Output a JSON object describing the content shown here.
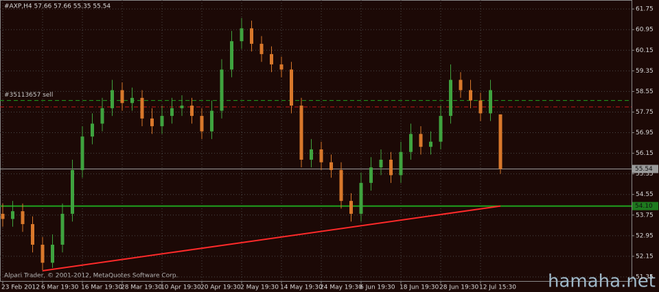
{
  "chart_data": {
    "type": "candlestick",
    "title": "#AXP,H4  57.66 57.66 55.35 55.54",
    "copyright": "Alpari Trader, © 2001-2012, MetaQuotes Software Corp.",
    "watermark": "hamaha.net",
    "categories": [
      "23 Feb 2012",
      null,
      null,
      null,
      "6 Mar 19:30",
      null,
      null,
      null,
      "16 Mar 19:30",
      null,
      null,
      null,
      "28 Mar 19:30",
      null,
      null,
      null,
      "10 Apr 19:30",
      null,
      null,
      null,
      "20 Apr 19:30",
      null,
      null,
      null,
      "2 May 19:30",
      null,
      null,
      null,
      "14 May 19:30",
      null,
      null,
      null,
      "24 May 19:30",
      null,
      null,
      null,
      "6 Jun 19:30",
      null,
      null,
      null,
      "18 Jun 19:30",
      null,
      null,
      null,
      "28 Jun 19:30",
      null,
      null,
      null,
      "12 Jul 15:30",
      null,
      null
    ],
    "open": [
      53.8,
      53.6,
      53.9,
      53.4,
      52.6,
      51.9,
      52.6,
      53.8,
      55.5,
      56.8,
      57.3,
      57.9,
      58.6,
      58.1,
      58.3,
      57.5,
      57.2,
      57.6,
      57.9,
      58.0,
      57.6,
      57.0,
      57.8,
      59.4,
      60.5,
      61.0,
      60.4,
      60.0,
      59.6,
      59.4,
      58.0,
      55.9,
      56.3,
      55.8,
      55.5,
      54.3,
      53.8,
      55.0,
      55.6,
      55.9,
      55.3,
      56.2,
      56.9,
      56.4,
      56.6,
      57.6,
      59.0,
      58.6,
      58.2,
      57.7,
      57.66
    ],
    "high": [
      54.2,
      54.3,
      54.2,
      53.7,
      52.9,
      53.0,
      54.2,
      55.9,
      57.2,
      57.7,
      58.3,
      59.0,
      58.9,
      58.7,
      58.6,
      57.9,
      58.0,
      58.3,
      58.4,
      58.3,
      57.9,
      58.2,
      59.8,
      60.9,
      61.4,
      61.3,
      60.7,
      60.3,
      59.9,
      59.7,
      58.3,
      56.7,
      56.6,
      56.1,
      55.8,
      54.6,
      55.4,
      56.0,
      56.3,
      56.2,
      56.6,
      57.3,
      57.2,
      57.0,
      58.0,
      59.6,
      59.3,
      59.0,
      58.5,
      59.0,
      57.66
    ],
    "low": [
      53.3,
      53.3,
      53.1,
      52.3,
      51.6,
      51.7,
      52.3,
      53.5,
      55.2,
      56.5,
      57.0,
      57.6,
      57.8,
      57.8,
      57.2,
      56.9,
      56.9,
      57.3,
      57.6,
      57.3,
      56.7,
      56.7,
      57.5,
      59.1,
      60.2,
      60.1,
      59.7,
      59.3,
      59.1,
      57.7,
      55.6,
      55.6,
      55.5,
      55.2,
      54.0,
      53.5,
      53.5,
      54.7,
      55.3,
      55.0,
      55.0,
      55.9,
      56.1,
      56.1,
      56.3,
      57.3,
      58.3,
      57.9,
      57.4,
      57.4,
      55.35
    ],
    "close": [
      53.6,
      53.9,
      53.4,
      52.6,
      51.9,
      52.6,
      53.8,
      55.5,
      56.8,
      57.3,
      57.9,
      58.6,
      58.1,
      58.3,
      57.5,
      57.2,
      57.6,
      57.9,
      58.0,
      57.6,
      57.0,
      57.8,
      59.4,
      60.5,
      61.0,
      60.4,
      60.0,
      59.6,
      59.4,
      58.0,
      55.9,
      56.3,
      55.8,
      55.5,
      54.3,
      53.8,
      55.0,
      55.6,
      55.9,
      55.3,
      56.2,
      56.9,
      56.4,
      56.6,
      57.6,
      59.0,
      58.6,
      58.2,
      57.7,
      58.6,
      55.54
    ],
    "up_color": "#3fa33f",
    "down_color": "#d9782b",
    "ylim": [
      51.19,
      62.1
    ],
    "yticks": [
      61.75,
      60.95,
      60.15,
      59.35,
      58.55,
      57.75,
      56.95,
      56.15,
      55.35,
      54.55,
      53.75,
      52.95,
      52.15,
      51.35
    ],
    "grid": true,
    "hlines": [
      {
        "value": 58.2,
        "color": "#1fa51f",
        "style": "dashed",
        "text": "#35113657 sell"
      },
      {
        "value": 57.95,
        "color": "#c81818",
        "style": "dashdot"
      },
      {
        "value": 55.54,
        "color": "#9a9a9a",
        "style": "solid",
        "tag": true
      },
      {
        "value": 54.1,
        "label": "54.10",
        "color": "#1fa51f",
        "style": "solid"
      }
    ],
    "trendline": {
      "x": [
        4,
        50
      ],
      "values": [
        51.59,
        54.1
      ],
      "color": "#ff2a2a"
    }
  }
}
